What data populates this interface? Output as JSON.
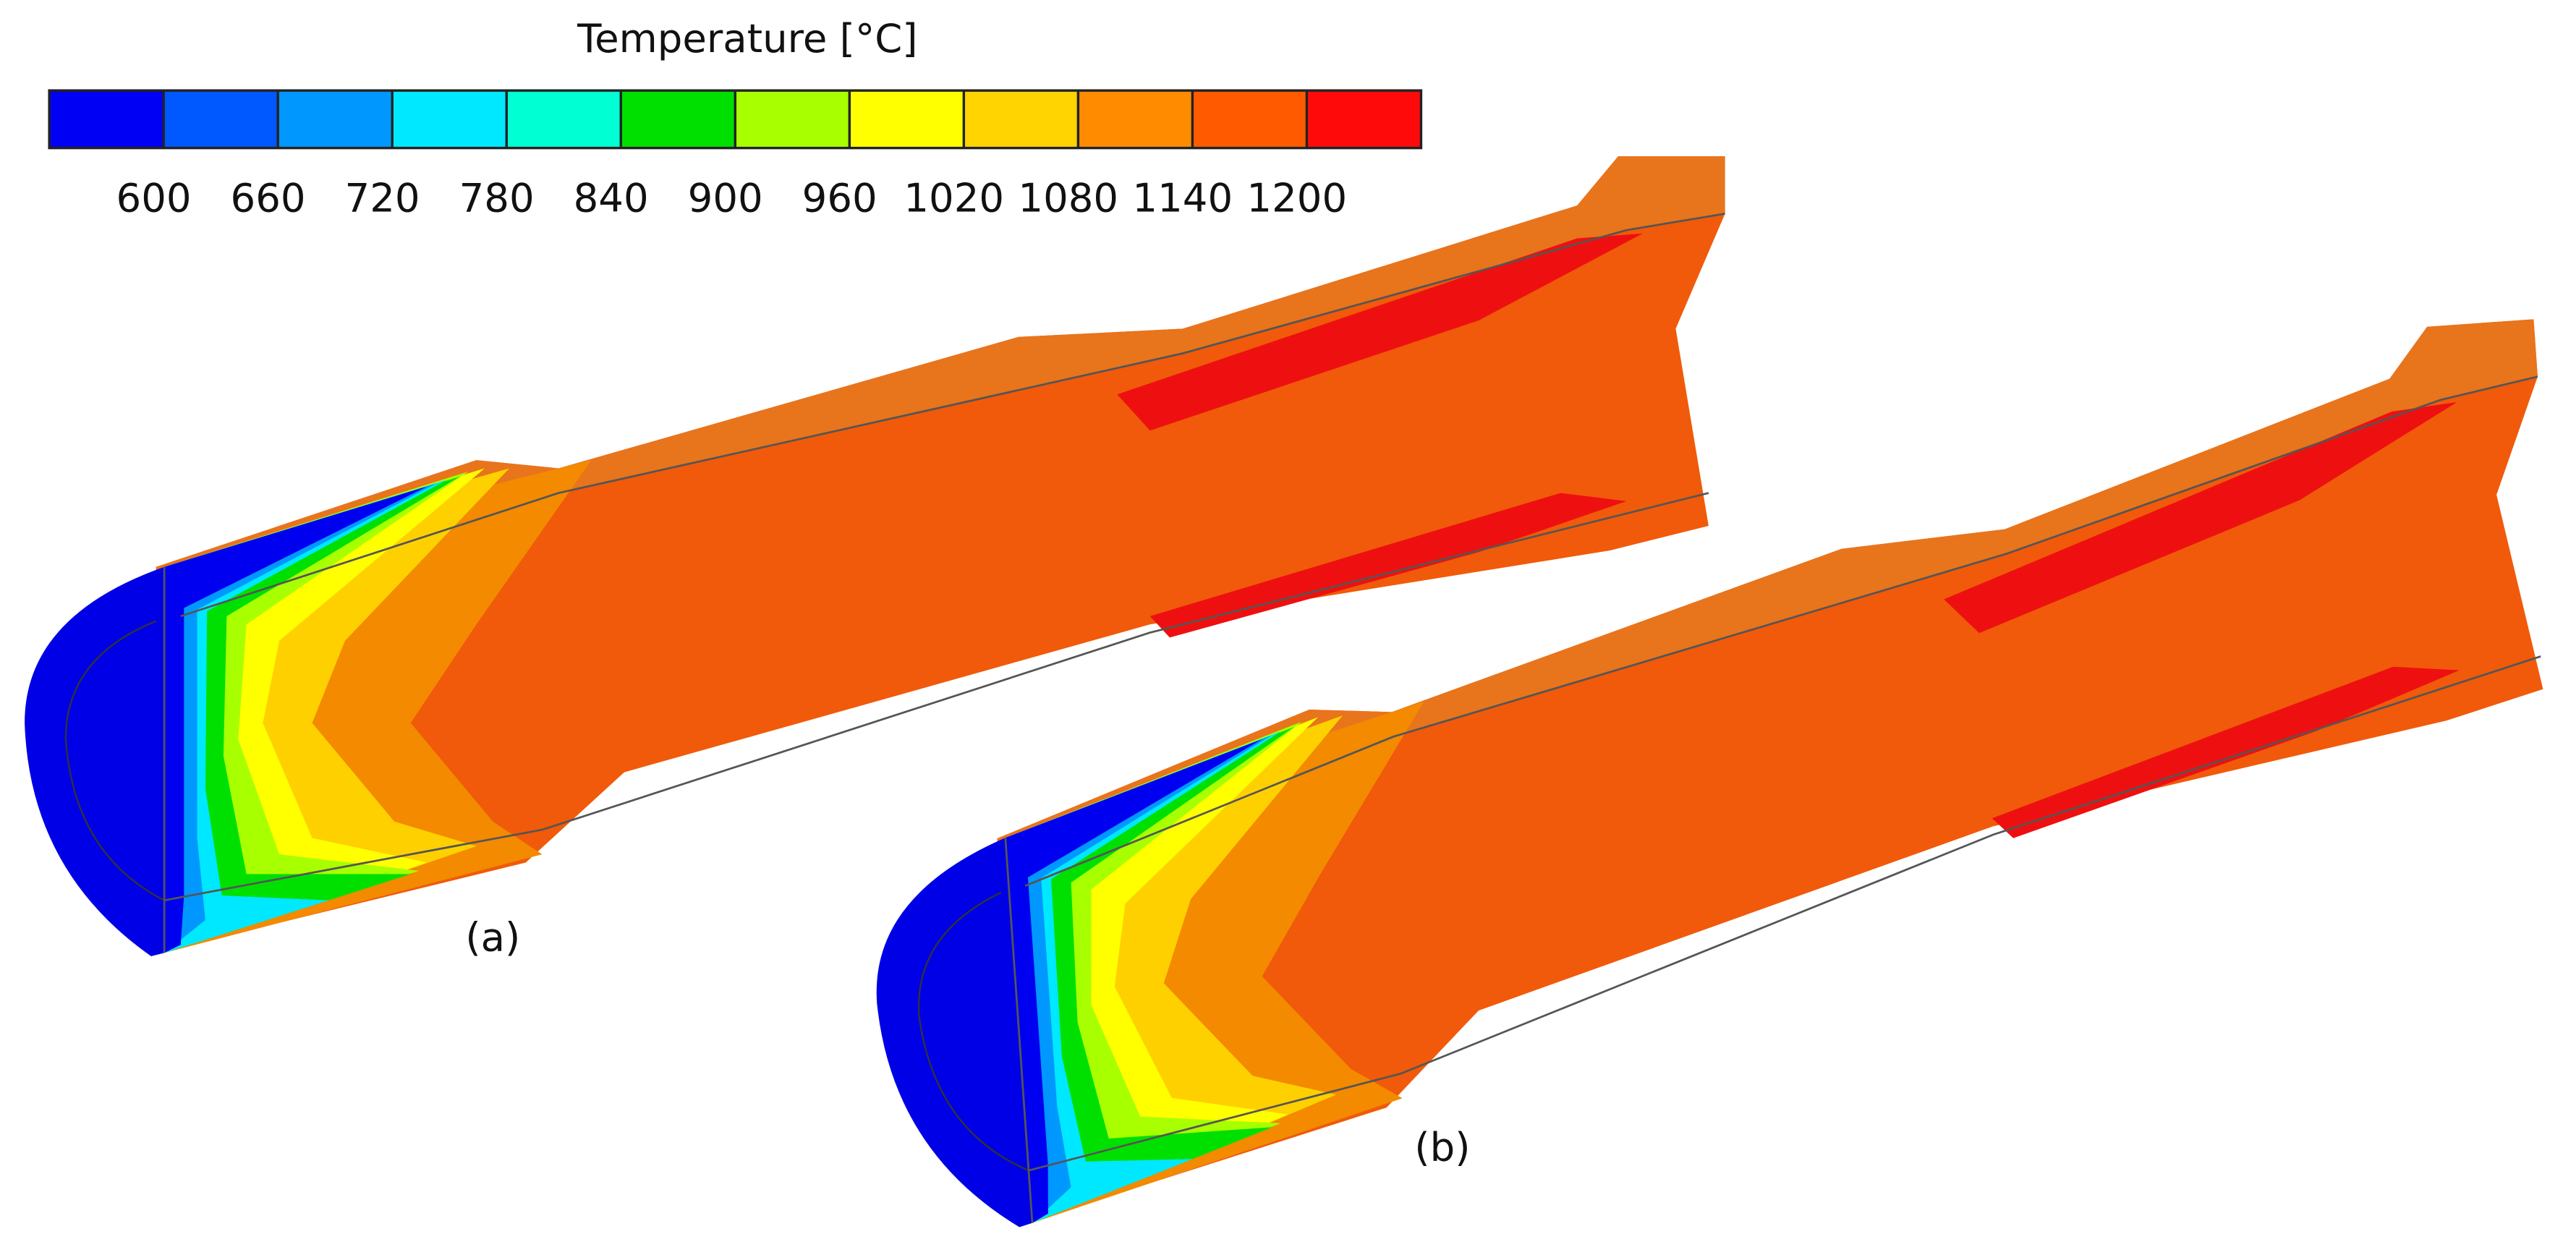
{
  "legend": {
    "title": "Temperature [°C]",
    "ticks": [
      600,
      660,
      720,
      780,
      840,
      900,
      960,
      1020,
      1080,
      1140,
      1200
    ],
    "colors": [
      "#0000f5",
      "#0058ff",
      "#0098ff",
      "#00e8ff",
      "#00ffd2",
      "#00e000",
      "#a8ff00",
      "#ffff00",
      "#ffd400",
      "#ff8c00",
      "#ff5a00",
      "#ff0a0a"
    ]
  },
  "panels": [
    {
      "label": "(a)"
    },
    {
      "label": "(b)"
    }
  ]
}
